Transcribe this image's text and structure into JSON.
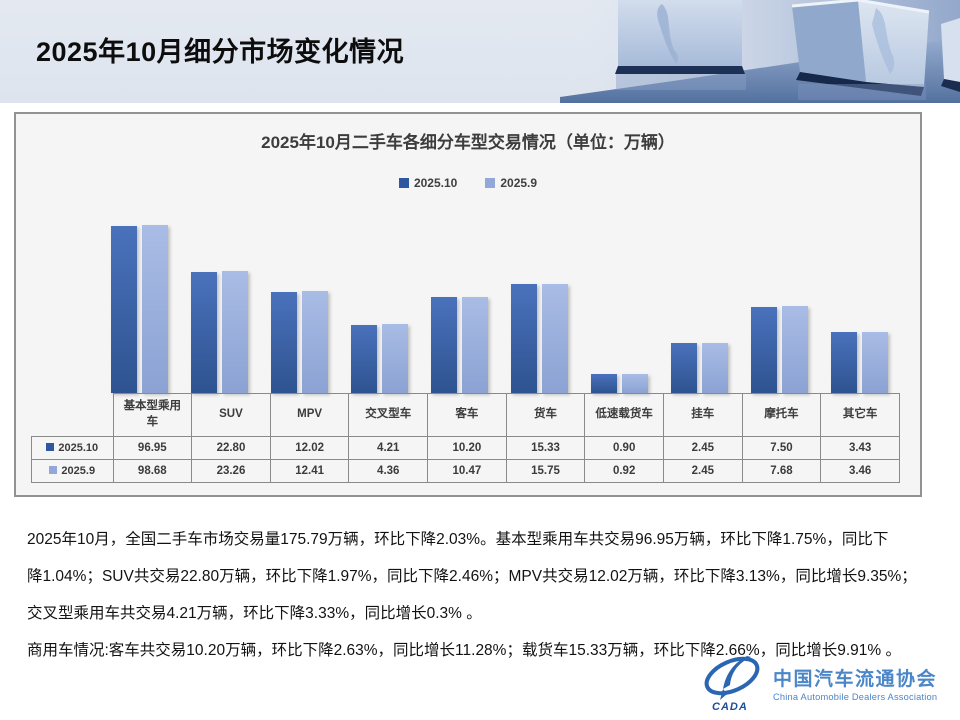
{
  "slide": {
    "title": "2025年10月细分市场变化情况"
  },
  "chart": {
    "title": "2025年10月二手车各细分车型交易情况（单位：万辆）",
    "panel_bg": "#f5f5f5"
  },
  "chart_data": {
    "type": "bar",
    "title": "2025年10月二手车各细分车型交易情况（单位：万辆）",
    "categories": [
      "基本型乘用车",
      "SUV",
      "MPV",
      "交叉型车",
      "客车",
      "货车",
      "低速载货车",
      "挂车",
      "摩托车",
      "其它车"
    ],
    "series": [
      {
        "name": "2025.10",
        "color": "#2d58a0",
        "values": [
          96.95,
          22.8,
          12.02,
          4.21,
          10.2,
          15.33,
          0.9,
          2.45,
          7.5,
          3.43
        ]
      },
      {
        "name": "2025.9",
        "color": "#92a8d8",
        "values": [
          98.68,
          23.26,
          12.41,
          4.36,
          10.47,
          15.75,
          0.92,
          2.45,
          7.68,
          3.46
        ]
      }
    ],
    "unit": "万辆",
    "scale": "log",
    "axis_min": 0.5,
    "legend_position": "top",
    "grid": false,
    "value_table_shown": true
  },
  "paragraphs": [
    "2025年10月，全国二手车市场交易量175.79万辆，环比下降2.03%。基本型乘用车共交易96.95万辆，环比下降1.75%，同比下",
    "降1.04%；SUV共交易22.80万辆，环比下降1.97%，同比下降2.46%；MPV共交易12.02万辆，环比下降3.13%，同比增长9.35%；",
    "交叉型乘用车共交易4.21万辆，环比下降3.33%，同比增长0.3% 。",
    "商用车情况:客车共交易10.20万辆，环比下降2.63%，同比增长11.28%；载货车15.33万辆，环比下降2.66%，同比增长9.91% 。"
  ],
  "logo": {
    "name_cn": "中国汽车流通协会",
    "name_en": "China Automobile Dealers Association",
    "mark_text": "CADA",
    "color": "#4b86c8"
  }
}
